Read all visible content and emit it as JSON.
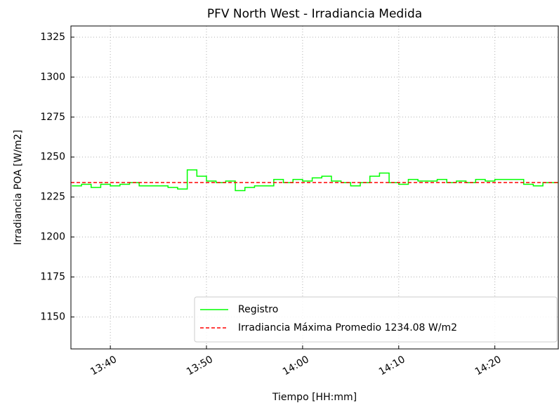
{
  "chart_data": {
    "type": "step",
    "title": "PFV North West - Irradiancia Medida",
    "xlabel": "Tiempo [HH:mm]",
    "ylabel": "Irradiancia POA [W/m2]",
    "x": [
      "13:36",
      "13:37",
      "13:38",
      "13:39",
      "13:40",
      "13:41",
      "13:42",
      "13:43",
      "13:44",
      "13:45",
      "13:46",
      "13:47",
      "13:48",
      "13:49",
      "13:50",
      "13:51",
      "13:52",
      "13:53",
      "13:54",
      "13:55",
      "13:56",
      "13:57",
      "13:58",
      "13:59",
      "14:00",
      "14:01",
      "14:02",
      "14:03",
      "14:04",
      "14:05",
      "14:06",
      "14:07",
      "14:08",
      "14:09",
      "14:10",
      "14:11",
      "14:12",
      "14:13",
      "14:14",
      "14:15",
      "14:16",
      "14:17",
      "14:18",
      "14:19",
      "14:20",
      "14:21",
      "14:22",
      "14:23",
      "14:24",
      "14:25",
      "14:26"
    ],
    "series": [
      {
        "name": "Registro",
        "color": "#00ff00",
        "values": [
          1232,
          1233,
          1231,
          1233,
          1232,
          1233,
          1234,
          1232,
          1232,
          1232,
          1231,
          1230,
          1242,
          1238,
          1235,
          1234,
          1235,
          1229,
          1231,
          1232,
          1232,
          1236,
          1234,
          1236,
          1235,
          1237,
          1238,
          1235,
          1234,
          1232,
          1234,
          1238,
          1240,
          1234,
          1233,
          1236,
          1235,
          1235,
          1236,
          1234,
          1235,
          1234,
          1236,
          1235,
          1236,
          1236,
          1236,
          1233,
          1232,
          1234,
          1234
        ]
      }
    ],
    "hline": {
      "name": "Irradiancia Máxima Promedio 1234.08 W/m2",
      "value": 1234.08,
      "color": "#ff0000"
    },
    "xlim": [
      "13:35:54",
      "14:26:36"
    ],
    "xticks": [
      "13:40",
      "13:50",
      "14:00",
      "14:10",
      "14:20"
    ],
    "ylim": [
      1130,
      1332
    ],
    "yticks": [
      1150,
      1175,
      1200,
      1225,
      1250,
      1275,
      1300,
      1325
    ],
    "grid": true,
    "legend": "lower right"
  }
}
